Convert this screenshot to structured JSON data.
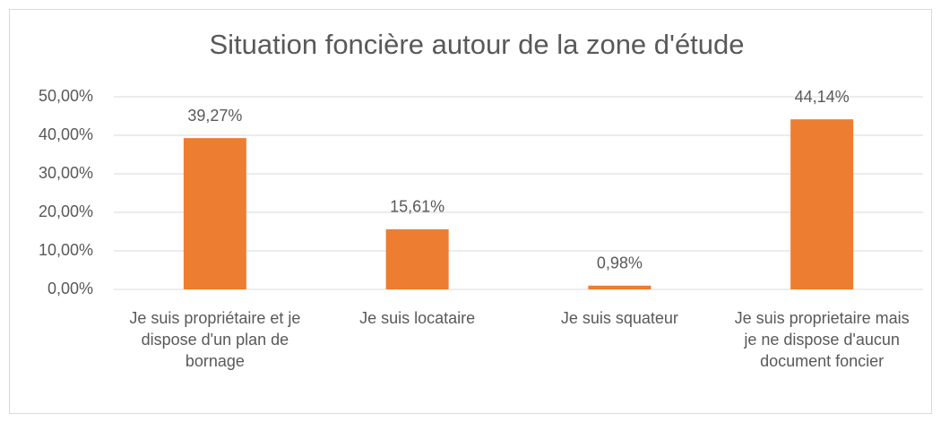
{
  "chart_data": {
    "type": "bar",
    "title": "Situation foncière autour de la zone d'étude",
    "categories": [
      "Je suis propriétaire et je dispose d'un plan de bornage",
      "Je suis locataire",
      "Je suis squateur",
      "Je suis proprietaire mais je ne dispose d'aucun document foncier"
    ],
    "values": [
      39.27,
      15.61,
      0.98,
      44.14
    ],
    "value_labels": [
      "39,27%",
      "15,61%",
      "0,98%",
      "44,14%"
    ],
    "color": "#ed7d31",
    "ylim": [
      0,
      50
    ],
    "yticks": [
      {
        "value": 0,
        "label": "0,00%"
      },
      {
        "value": 10,
        "label": "10,00%"
      },
      {
        "value": 20,
        "label": "20,00%"
      },
      {
        "value": 30,
        "label": "30,00%"
      },
      {
        "value": 40,
        "label": "40,00%"
      },
      {
        "value": 50,
        "label": "50,00%"
      }
    ],
    "grid": true
  }
}
